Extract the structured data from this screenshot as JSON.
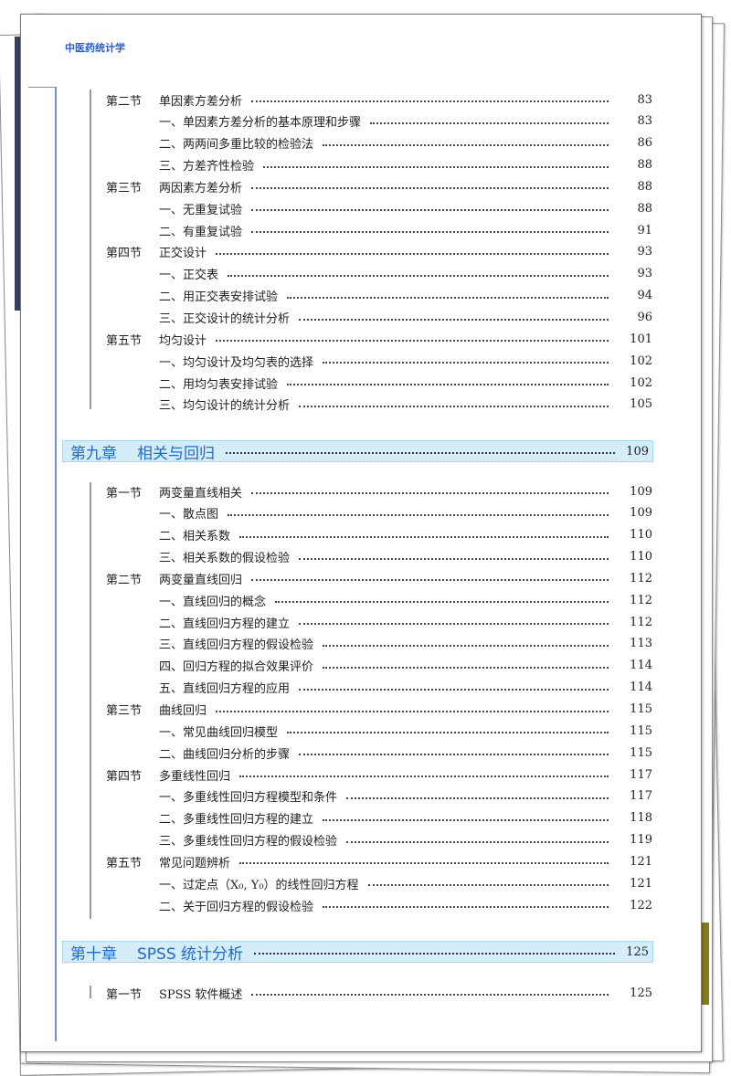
{
  "running_head": "中医药统计学",
  "block1": [
    {
      "sec": "第二节",
      "title": "单因素方差分析",
      "page": "83"
    },
    {
      "sec": "",
      "title": "一、单因素方差分析的基本原理和步骤",
      "page": "83"
    },
    {
      "sec": "",
      "title": "二、两两间多重比较的检验法",
      "page": "86"
    },
    {
      "sec": "",
      "title": "三、方差齐性检验",
      "page": "88"
    },
    {
      "sec": "第三节",
      "title": "两因素方差分析",
      "page": "88"
    },
    {
      "sec": "",
      "title": "一、无重复试验",
      "page": "88"
    },
    {
      "sec": "",
      "title": "二、有重复试验",
      "page": "91"
    },
    {
      "sec": "第四节",
      "title": "正交设计",
      "page": "93"
    },
    {
      "sec": "",
      "title": "一、正交表",
      "page": "93"
    },
    {
      "sec": "",
      "title": "二、用正交表安排试验",
      "page": "94"
    },
    {
      "sec": "",
      "title": "三、正交设计的统计分析",
      "page": "96"
    },
    {
      "sec": "第五节",
      "title": "均匀设计",
      "page": "101"
    },
    {
      "sec": "",
      "title": "一、均匀设计及均匀表的选择",
      "page": "102"
    },
    {
      "sec": "",
      "title": "二、用均匀表安排试验",
      "page": "102"
    },
    {
      "sec": "",
      "title": "三、均匀设计的统计分析",
      "page": "105"
    }
  ],
  "chapter9": {
    "number": "第九章",
    "title": "相关与回归",
    "page": "109"
  },
  "block2": [
    {
      "sec": "第一节",
      "title": "两变量直线相关",
      "page": "109"
    },
    {
      "sec": "",
      "title": "一、散点图",
      "page": "109"
    },
    {
      "sec": "",
      "title": "二、相关系数",
      "page": "110"
    },
    {
      "sec": "",
      "title": "三、相关系数的假设检验",
      "page": "110"
    },
    {
      "sec": "第二节",
      "title": "两变量直线回归",
      "page": "112"
    },
    {
      "sec": "",
      "title": "一、直线回归的概念",
      "page": "112"
    },
    {
      "sec": "",
      "title": "二、直线回归方程的建立",
      "page": "112"
    },
    {
      "sec": "",
      "title": "三、直线回归方程的假设检验",
      "page": "113"
    },
    {
      "sec": "",
      "title": "四、回归方程的拟合效果评价",
      "page": "114"
    },
    {
      "sec": "",
      "title": "五、直线回归方程的应用",
      "page": "114"
    },
    {
      "sec": "第三节",
      "title": "曲线回归",
      "page": "115"
    },
    {
      "sec": "",
      "title": "一、常见曲线回归模型",
      "page": "115"
    },
    {
      "sec": "",
      "title": "二、曲线回归分析的步骤",
      "page": "115"
    },
    {
      "sec": "第四节",
      "title": "多重线性回归",
      "page": "117"
    },
    {
      "sec": "",
      "title": "一、多重线性回归方程模型和条件",
      "page": "117"
    },
    {
      "sec": "",
      "title": "二、多重线性回归方程的建立",
      "page": "118"
    },
    {
      "sec": "",
      "title": "三、多重线性回归方程的假设检验",
      "page": "119"
    },
    {
      "sec": "第五节",
      "title": "常见问题辨析",
      "page": "121"
    },
    {
      "sec": "",
      "title": "一、过定点（X₀, Y₀）的线性回归方程",
      "page": "121"
    },
    {
      "sec": "",
      "title": "二、关于回归方程的假设检验",
      "page": "122"
    }
  ],
  "chapter10": {
    "number": "第十章",
    "title": "SPSS 统计分析",
    "page": "125"
  },
  "block3": [
    {
      "sec": "第一节",
      "title": "SPSS 软件概述",
      "page": "125"
    }
  ],
  "colors": {
    "accent": "#2a5bd7",
    "chapter_bg": "#d5ecf9",
    "chapter_text": "#1f6ad1"
  }
}
